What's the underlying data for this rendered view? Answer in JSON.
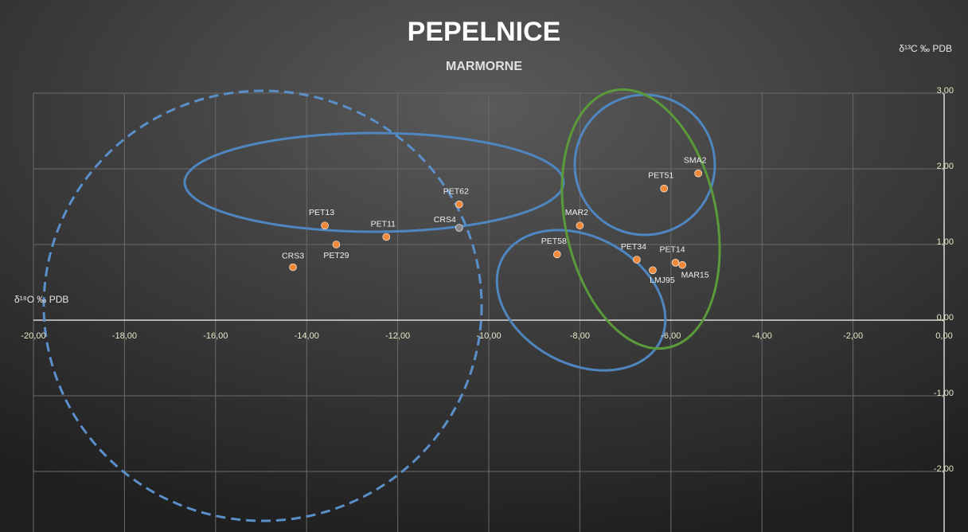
{
  "chart_data": {
    "type": "scatter",
    "title": "PEPELNICE",
    "subtitle": "MARMORNE",
    "x_label": "δ¹⁸O ‰ PDB",
    "y_label": "δ¹³C ‰ PDB",
    "xlim": [
      -20,
      0
    ],
    "ylim": [
      -2.8,
      3
    ],
    "xticks": [
      {
        "value": -20,
        "label": "-20,00"
      },
      {
        "value": -18,
        "label": "-18,00"
      },
      {
        "value": -16,
        "label": "-16,00"
      },
      {
        "value": -14,
        "label": "-14,00"
      },
      {
        "value": -12,
        "label": "-12,00"
      },
      {
        "value": -10,
        "label": "-10,00"
      },
      {
        "value": -8,
        "label": "-8,00"
      },
      {
        "value": -6,
        "label": "-6,00"
      },
      {
        "value": -4,
        "label": "-4,00"
      },
      {
        "value": -2,
        "label": "-2,00"
      },
      {
        "value": 0,
        "label": "0,00"
      }
    ],
    "yticks": [
      {
        "value": -2,
        "label": "-2,00"
      },
      {
        "value": -1,
        "label": "-1,00"
      },
      {
        "value": 0,
        "label": "0,00"
      },
      {
        "value": 1,
        "label": "1,00"
      },
      {
        "value": 2,
        "label": "2,00"
      },
      {
        "value": 3,
        "label": "3,00"
      }
    ],
    "grid": true,
    "series": [
      {
        "labels": [
          "CRS3",
          "PET13",
          "PET29",
          "PET11",
          "PET62",
          "CRS4",
          "PET58",
          "MAR2",
          "PET51",
          "SMA2",
          "PET34",
          "LMJ95",
          "PET14",
          "MAR15"
        ],
        "x": [
          -14.3,
          -13.6,
          -13.35,
          -12.25,
          -10.65,
          -10.65,
          -8.5,
          -8.0,
          -6.15,
          -5.4,
          -6.75,
          -6.4,
          -5.9,
          -5.75
        ],
        "values": [
          0.7,
          1.25,
          1.0,
          1.1,
          1.53,
          1.22,
          0.87,
          1.25,
          1.74,
          1.94,
          0.8,
          0.66,
          0.76,
          0.73
        ],
        "colors": [
          "#f08a3a",
          "#f08a3a",
          "#f08a3a",
          "#f08a3a",
          "#f08a3a",
          "#8a8a8a",
          "#f08a3a",
          "#f08a3a",
          "#f08a3a",
          "#f08a3a",
          "#f08a3a",
          "#f08a3a",
          "#f08a3a",
          "#f08a3a"
        ]
      }
    ]
  }
}
